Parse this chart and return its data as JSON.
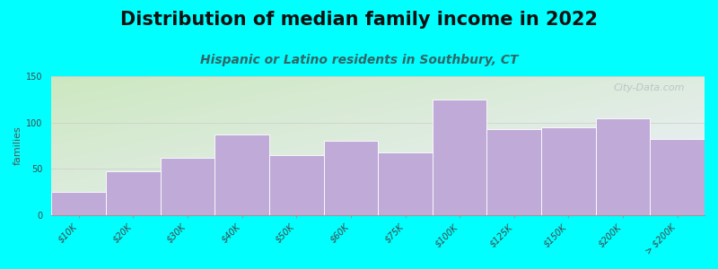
{
  "title": "Distribution of median family income in 2022",
  "subtitle": "Hispanic or Latino residents in Southbury, CT",
  "ylabel": "families",
  "background_color": "#00FFFF",
  "grad_top_left": "#cce8c0",
  "grad_bottom_right": "#f0f0ff",
  "bar_color": "#c0aad8",
  "bar_edge_color": "#ffffff",
  "categories": [
    "$10K",
    "$20K",
    "$30K",
    "$40K",
    "$50K",
    "$60K",
    "$75K",
    "$100K",
    "$125K",
    "$150K",
    "$200K",
    "> $200K"
  ],
  "values": [
    25,
    48,
    62,
    87,
    65,
    80,
    68,
    125,
    93,
    95,
    105,
    82
  ],
  "ylim": [
    0,
    150
  ],
  "yticks": [
    0,
    50,
    100,
    150
  ],
  "title_fontsize": 15,
  "subtitle_fontsize": 10,
  "ylabel_fontsize": 8,
  "tick_fontsize": 7,
  "subtitle_color": "#336666",
  "title_color": "#111111",
  "watermark": "City-Data.com"
}
